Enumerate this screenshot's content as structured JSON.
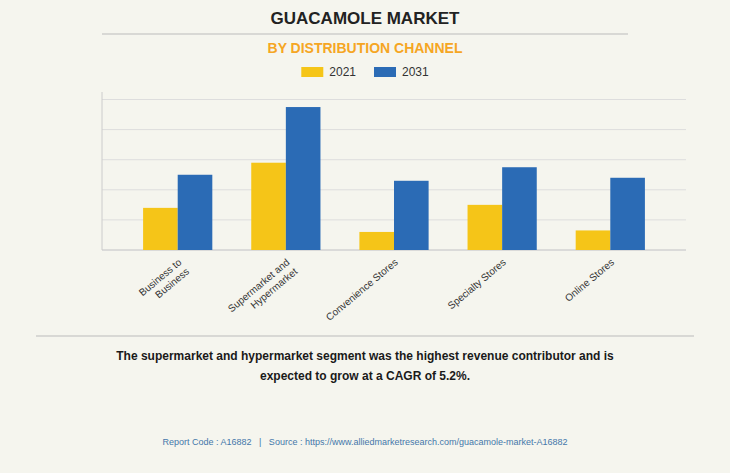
{
  "chart_data": {
    "type": "bar",
    "title": "GUACAMOLE MARKET",
    "subtitle": "BY DISTRIBUTION CHANNEL",
    "categories": [
      "Business to\nBusiness",
      "Supermarket and\nHypermarket",
      "Convenience Stores",
      "Specialty Stores",
      "Online Stores"
    ],
    "series": [
      {
        "name": "2021",
        "color": "#F5C518",
        "values": [
          0.28,
          0.58,
          0.12,
          0.3,
          0.13
        ]
      },
      {
        "name": "2031",
        "color": "#2B6BB5",
        "values": [
          0.5,
          0.95,
          0.46,
          0.55,
          0.48
        ]
      }
    ],
    "ylim": [
      0,
      1.05
    ],
    "yticks": [
      0,
      0.2,
      0.4,
      0.6,
      0.8,
      1.0
    ],
    "grid": true,
    "tick_labels": "x",
    "legend": "top",
    "annotations": [
      "The supermarket and hypermarket segment was the highest revenue contributor and is\nexpected to grow at a CAGR of 5.2%.",
      "Report Code : A16882   |   Source : https://www.alliedmarketresearch.com/guacamole-market-A16882"
    ]
  }
}
